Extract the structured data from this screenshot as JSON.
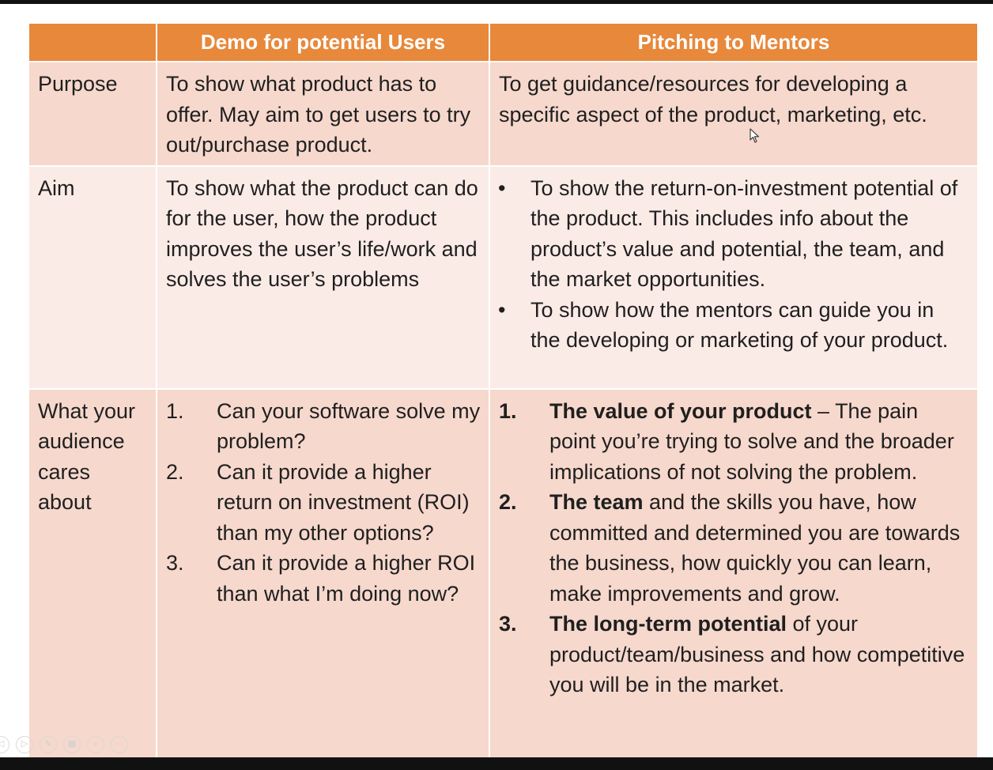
{
  "table": {
    "headers": [
      "",
      "Demo for potential Users",
      "Pitching to Mentors"
    ],
    "rows": {
      "purpose": {
        "label": "Purpose",
        "demo": "To show what product has to offer. May aim to get users to try out/purchase product.",
        "pitch": "To get guidance/resources for developing a specific aspect of the product, marketing, etc."
      },
      "aim": {
        "label": "Aim",
        "demo": "To show what the product can do for the user, how the product improves the user’s life/work and solves the user’s problems",
        "pitch_bullets": [
          "To show the return-on-investment potential of the product. This includes info about the product’s value and potential, the team, and the market opportunities.",
          "To show how the mentors can guide you in the developing or marketing of your product."
        ],
        "bullet_char": "•"
      },
      "cares": {
        "label": "What your audience cares about",
        "demo_items": [
          {
            "num": "1.",
            "text": "Can your software solve my problem?"
          },
          {
            "num": "2.",
            "text": "Can it provide a higher return on investment (ROI) than my other options?"
          },
          {
            "num": "3.",
            "text": "Can it provide a higher ROI than what I’m doing now?"
          }
        ],
        "pitch_items": [
          {
            "num": "1.",
            "bold": "The value of your product",
            "rest": " – The pain point you’re trying to solve and the broader implications of not solving the problem."
          },
          {
            "num": "2.",
            "bold": "The team",
            "rest": " and the skills you have, how committed and determined you are towards the business, how quickly you can learn, make improvements and grow."
          },
          {
            "num": "3.",
            "bold": "The long-term potential",
            "rest": " of your product/team/business and how competitive you will be in the market."
          }
        ]
      }
    }
  },
  "colors": {
    "header_bg": "#e8883b",
    "row_odd_bg": "#f6d8cd",
    "row_even_bg": "#fbebe6"
  },
  "controls": {
    "icons": [
      "previous-slide-icon",
      "next-slide-icon",
      "pen-icon",
      "slides-grid-icon",
      "zoom-icon",
      "more-options-icon"
    ],
    "more_glyph": "···"
  }
}
